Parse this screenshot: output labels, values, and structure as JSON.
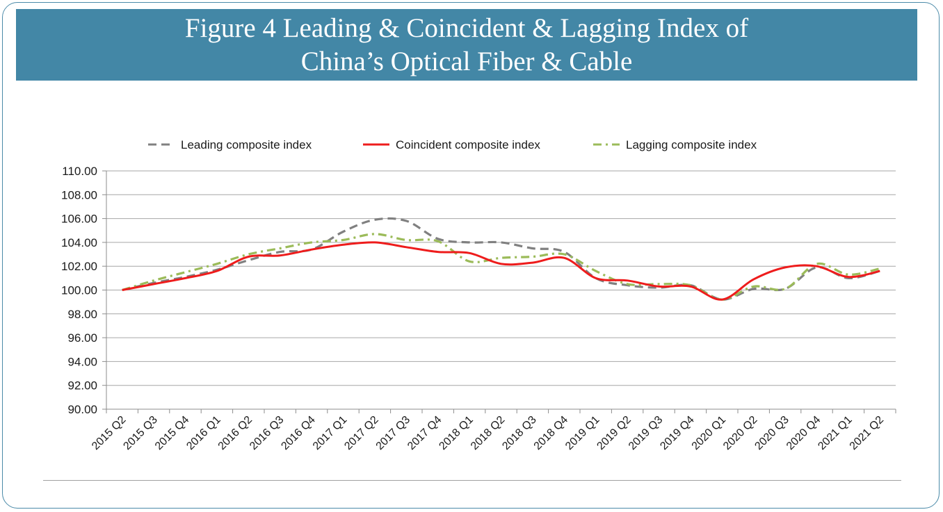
{
  "title": {
    "line1": "Figure 4 Leading & Coincident & Lagging Index of",
    "line2": "China’s Optical Fiber & Cable"
  },
  "chart_data": {
    "type": "line",
    "categories": [
      "2015 Q2",
      "2015 Q3",
      "2015 Q4",
      "2016 Q1",
      "2016 Q2",
      "2016 Q3",
      "2016 Q4",
      "2017 Q1",
      "2017 Q2",
      "2017 Q3",
      "2017 Q4",
      "2018 Q1",
      "2018 Q2",
      "2018 Q3",
      "2018 Q4",
      "2019 Q1",
      "2019 Q2",
      "2019 Q3",
      "2019 Q4",
      "2020 Q1",
      "2020 Q2",
      "2020 Q3",
      "2020 Q4",
      "2021 Q1",
      "2021 Q2"
    ],
    "ylim": [
      90,
      110
    ],
    "yticks": [
      "90.00",
      "92.00",
      "94.00",
      "96.00",
      "98.00",
      "100.00",
      "102.00",
      "104.00",
      "106.00",
      "108.00",
      "110.00"
    ],
    "grid": true,
    "legend_position": "top",
    "series": [
      {
        "name": "Leading composite index",
        "color": "#808080",
        "dash": "dashed",
        "values": [
          100.0,
          100.6,
          101.1,
          101.7,
          102.5,
          103.2,
          103.4,
          104.9,
          105.9,
          105.8,
          104.3,
          104.0,
          104.0,
          103.5,
          103.2,
          101.0,
          100.4,
          100.2,
          100.4,
          99.2,
          100.1,
          100.1,
          101.9,
          101.0,
          101.6
        ]
      },
      {
        "name": "Coincident composite index",
        "color": "#ee1c1c",
        "dash": "solid",
        "values": [
          100.0,
          100.5,
          101.0,
          101.6,
          102.8,
          102.9,
          103.4,
          103.8,
          104.0,
          103.6,
          103.2,
          103.1,
          102.2,
          102.3,
          102.7,
          101.0,
          100.8,
          100.3,
          100.3,
          99.2,
          100.9,
          101.9,
          102.0,
          101.1,
          101.6
        ]
      },
      {
        "name": "Lagging composite index",
        "color": "#9bbb59",
        "dash": "dashdot",
        "values": [
          100.0,
          100.8,
          101.5,
          102.2,
          103.0,
          103.5,
          104.0,
          104.2,
          104.7,
          104.2,
          104.1,
          102.4,
          102.7,
          102.8,
          103.0,
          101.6,
          100.5,
          100.5,
          100.4,
          99.2,
          100.3,
          100.1,
          102.2,
          101.3,
          101.8
        ]
      }
    ]
  }
}
